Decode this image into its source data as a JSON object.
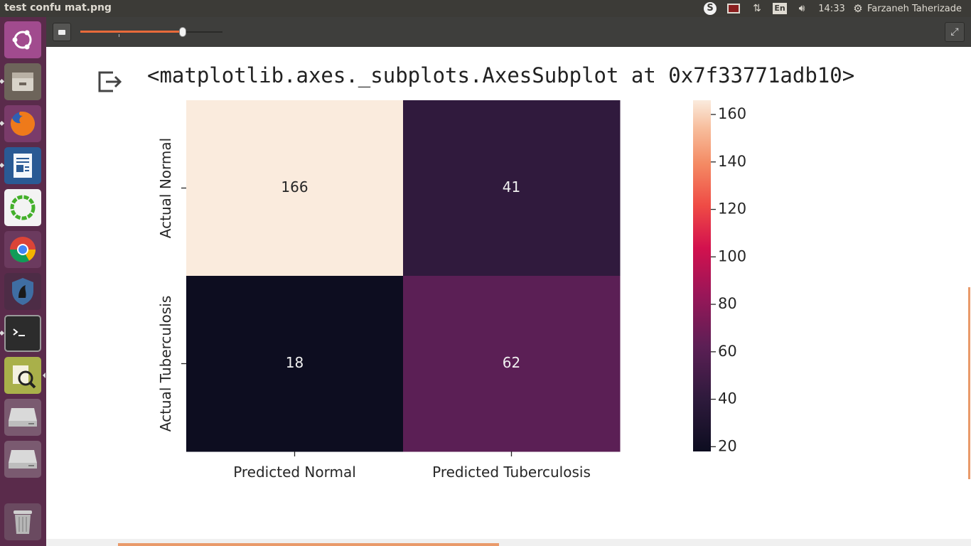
{
  "topbar": {
    "app_title": "test confu mat.png",
    "skype_glyph": "S",
    "lang": "En",
    "clock": "14:33",
    "user": "Farzaneh Taherizade",
    "icons": [
      "skype-icon",
      "recorder-icon",
      "network-icon",
      "keyboard-layout-icon",
      "volume-icon",
      "settings-gear-icon"
    ]
  },
  "launcher": {
    "items": [
      {
        "name": "ubuntu-dash-icon",
        "color": "#8e3d7e"
      },
      {
        "name": "file-manager-icon",
        "color": "#7b6f63"
      },
      {
        "name": "firefox-icon",
        "color": "#e66000"
      },
      {
        "name": "libreoffice-writer-icon",
        "color": "#1d5b9e"
      },
      {
        "name": "anaconda-navigator-icon",
        "color": "#43b02a"
      },
      {
        "name": "chrome-icon",
        "color": "#4285f4"
      },
      {
        "name": "tor-browser-icon",
        "color": "#3f6ea3"
      },
      {
        "name": "terminal-icon",
        "color": "#2c2c2c"
      },
      {
        "name": "document-viewer-icon",
        "color": "#9aa83a"
      },
      {
        "name": "drive-icon",
        "color": "#cfcfcf"
      },
      {
        "name": "drive-icon",
        "color": "#cfcfcf"
      },
      {
        "name": "trash-icon",
        "color": "#9b9b9b"
      }
    ]
  },
  "viewer": {
    "zoom_fraction": 0.72,
    "output_text": "<matplotlib.axes._subplots.AxesSubplot at 0x7f33771adb10>"
  },
  "chart_data": {
    "type": "heatmap",
    "x_categories": [
      "Predicted Normal",
      "Predicted Tuberculosis"
    ],
    "y_categories": [
      "Actual Normal",
      "Actual Tuberculosis"
    ],
    "values": [
      [
        166,
        41
      ],
      [
        18,
        62
      ]
    ],
    "colorbar": {
      "min": 18,
      "max": 166,
      "ticks": [
        20,
        40,
        60,
        80,
        100,
        120,
        140,
        160
      ],
      "tick_labels": [
        "20",
        "40",
        "60",
        "80",
        "100",
        "120",
        "140",
        "160"
      ],
      "colormap": "rocket"
    },
    "annotations": true
  }
}
